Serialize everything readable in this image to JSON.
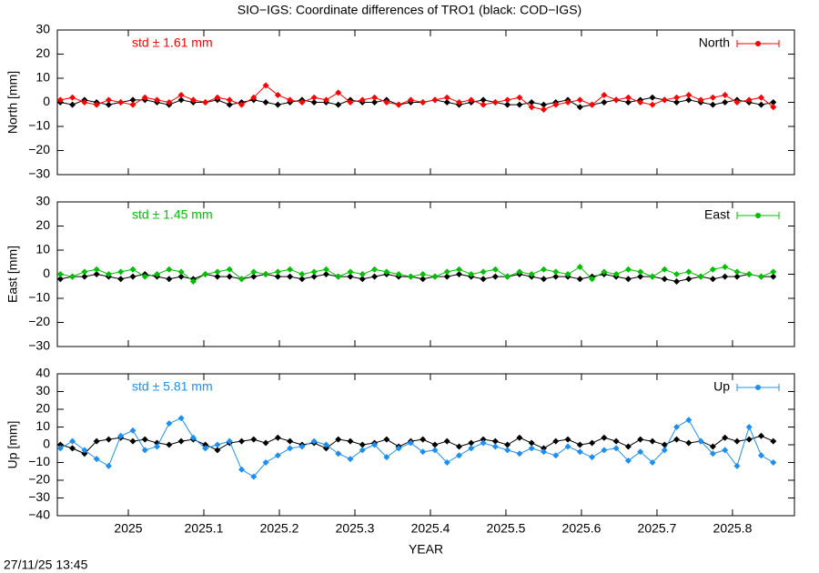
{
  "title": "SIO−IGS: Coordinate differences of TRO1 (black: COD−IGS)",
  "footer": "27/11/25 13:45",
  "chart_data": [
    {
      "type": "line",
      "ylabel": "North [mm]",
      "annotation": "std ± 1.61 mm",
      "legend": "upper right",
      "xlim": [
        2024.906,
        2025.882
      ],
      "xticks": [
        2025,
        2025.1,
        2025.2,
        2025.3,
        2025.4,
        2025.5,
        2025.6,
        2025.7,
        2025.8
      ],
      "ylim": [
        -30,
        30
      ],
      "yticks": [
        {
          "value": -30,
          "label": "−30"
        },
        {
          "value": -20,
          "label": "−20"
        },
        {
          "value": -10,
          "label": "−10"
        },
        0,
        10,
        20,
        30
      ],
      "x": [
        2024.91,
        2024.926,
        2024.942,
        2024.958,
        2024.974,
        2024.99,
        2025.006,
        2025.022,
        2025.038,
        2025.054,
        2025.07,
        2025.086,
        2025.102,
        2025.118,
        2025.134,
        2025.15,
        2025.166,
        2025.182,
        2025.198,
        2025.214,
        2025.23,
        2025.246,
        2025.262,
        2025.278,
        2025.294,
        2025.31,
        2025.326,
        2025.342,
        2025.358,
        2025.374,
        2025.39,
        2025.406,
        2025.422,
        2025.438,
        2025.454,
        2025.47,
        2025.486,
        2025.502,
        2025.518,
        2025.534,
        2025.55,
        2025.566,
        2025.582,
        2025.598,
        2025.614,
        2025.63,
        2025.646,
        2025.662,
        2025.678,
        2025.694,
        2025.71,
        2025.726,
        2025.742,
        2025.758,
        2025.774,
        2025.79,
        2025.806,
        2025.822,
        2025.838,
        2025.854
      ],
      "series": [
        {
          "color": "#000000",
          "values": [
            0,
            -1,
            1,
            0,
            -1,
            0,
            1,
            1,
            0,
            -1,
            1,
            0,
            0,
            1,
            -1,
            0,
            1,
            0,
            -1,
            0,
            1,
            0,
            0,
            -1,
            1,
            0,
            0,
            1,
            -1,
            0,
            0,
            1,
            0,
            -1,
            0,
            1,
            0,
            -1,
            -1,
            0,
            -1,
            0,
            1,
            -2,
            -1,
            0,
            1,
            0,
            1,
            2,
            1,
            0,
            1,
            0,
            -1,
            0,
            1,
            0,
            -1,
            0
          ]
        },
        {
          "name": "North",
          "color": "#ff0000",
          "values": [
            1,
            2,
            0,
            -1,
            1,
            0,
            -1,
            2,
            1,
            0,
            3,
            1,
            0,
            2,
            1,
            -1,
            2,
            7,
            3,
            1,
            0,
            2,
            1,
            4,
            0,
            1,
            2,
            0,
            -1,
            1,
            0,
            1,
            2,
            0,
            1,
            -1,
            0,
            1,
            2,
            -2,
            -3,
            -1,
            0,
            1,
            -1,
            3,
            1,
            2,
            0,
            -1,
            1,
            2,
            3,
            1,
            2,
            3,
            0,
            1,
            2,
            -2
          ]
        }
      ]
    },
    {
      "type": "line",
      "ylabel": "East [mm]",
      "annotation": "std ± 1.45 mm",
      "legend": "upper right",
      "xlim": [
        2024.906,
        2025.882
      ],
      "xticks": [
        2025,
        2025.1,
        2025.2,
        2025.3,
        2025.4,
        2025.5,
        2025.6,
        2025.7,
        2025.8
      ],
      "ylim": [
        -30,
        30
      ],
      "yticks": [
        {
          "value": -30,
          "label": "−30"
        },
        {
          "value": -20,
          "label": "−20"
        },
        {
          "value": -10,
          "label": "−10"
        },
        0,
        10,
        20,
        30
      ],
      "x": [
        2024.91,
        2024.926,
        2024.942,
        2024.958,
        2024.974,
        2024.99,
        2025.006,
        2025.022,
        2025.038,
        2025.054,
        2025.07,
        2025.086,
        2025.102,
        2025.118,
        2025.134,
        2025.15,
        2025.166,
        2025.182,
        2025.198,
        2025.214,
        2025.23,
        2025.246,
        2025.262,
        2025.278,
        2025.294,
        2025.31,
        2025.326,
        2025.342,
        2025.358,
        2025.374,
        2025.39,
        2025.406,
        2025.422,
        2025.438,
        2025.454,
        2025.47,
        2025.486,
        2025.502,
        2025.518,
        2025.534,
        2025.55,
        2025.566,
        2025.582,
        2025.598,
        2025.614,
        2025.63,
        2025.646,
        2025.662,
        2025.678,
        2025.694,
        2025.71,
        2025.726,
        2025.742,
        2025.758,
        2025.774,
        2025.79,
        2025.806,
        2025.822,
        2025.838,
        2025.854
      ],
      "series": [
        {
          "color": "#000000",
          "values": [
            -2,
            -1,
            -1,
            0,
            -1,
            -2,
            -1,
            0,
            -1,
            -2,
            -1,
            -2,
            0,
            -1,
            -1,
            -2,
            -1,
            0,
            -1,
            -1,
            -2,
            -1,
            0,
            -1,
            -1,
            -2,
            -1,
            0,
            -1,
            -1,
            -2,
            -1,
            -1,
            0,
            -1,
            -2,
            -1,
            -1,
            0,
            -1,
            -2,
            -1,
            -1,
            -2,
            -1,
            0,
            -1,
            -2,
            -1,
            -1,
            -2,
            -3,
            -2,
            -1,
            -2,
            -1,
            -1,
            0,
            -1,
            -1
          ]
        },
        {
          "name": "East",
          "color": "#00c000",
          "values": [
            0,
            -1,
            1,
            2,
            0,
            1,
            2,
            -1,
            0,
            2,
            1,
            -3,
            0,
            1,
            2,
            -2,
            1,
            0,
            1,
            2,
            0,
            1,
            2,
            -1,
            1,
            0,
            2,
            1,
            0,
            -1,
            0,
            -1,
            1,
            2,
            0,
            1,
            2,
            -1,
            1,
            0,
            2,
            1,
            0,
            3,
            -2,
            1,
            0,
            2,
            1,
            -1,
            2,
            0,
            1,
            -1,
            2,
            3,
            1,
            0,
            -1,
            1
          ]
        }
      ]
    },
    {
      "type": "line",
      "ylabel": "Up [mm]",
      "annotation": "std ± 5.81 mm",
      "legend": "upper right",
      "xlabel": "YEAR",
      "xlim": [
        2024.906,
        2025.882
      ],
      "xticks": [
        2025,
        2025.1,
        2025.2,
        2025.3,
        2025.4,
        2025.5,
        2025.6,
        2025.7,
        2025.8
      ],
      "ylim": [
        -40,
        40
      ],
      "yticks": [
        {
          "value": -40,
          "label": "−40"
        },
        {
          "value": -30,
          "label": "−30"
        },
        {
          "value": -20,
          "label": "−20"
        },
        {
          "value": -10,
          "label": "−10"
        },
        0,
        10,
        20,
        30,
        40
      ],
      "x": [
        2024.91,
        2024.926,
        2024.942,
        2024.958,
        2024.974,
        2024.99,
        2025.006,
        2025.022,
        2025.038,
        2025.054,
        2025.07,
        2025.086,
        2025.102,
        2025.118,
        2025.134,
        2025.15,
        2025.166,
        2025.182,
        2025.198,
        2025.214,
        2025.23,
        2025.246,
        2025.262,
        2025.278,
        2025.294,
        2025.31,
        2025.326,
        2025.342,
        2025.358,
        2025.374,
        2025.39,
        2025.406,
        2025.422,
        2025.438,
        2025.454,
        2025.47,
        2025.486,
        2025.502,
        2025.518,
        2025.534,
        2025.55,
        2025.566,
        2025.582,
        2025.598,
        2025.614,
        2025.63,
        2025.646,
        2025.662,
        2025.678,
        2025.694,
        2025.71,
        2025.726,
        2025.742,
        2025.758,
        2025.774,
        2025.79,
        2025.806,
        2025.822,
        2025.838,
        2025.854
      ],
      "series": [
        {
          "color": "#000000",
          "values": [
            0,
            -2,
            -5,
            2,
            3,
            4,
            2,
            3,
            1,
            0,
            2,
            3,
            0,
            -3,
            1,
            2,
            3,
            1,
            4,
            2,
            0,
            1,
            -2,
            3,
            2,
            0,
            1,
            3,
            -1,
            2,
            3,
            0,
            2,
            -1,
            1,
            3,
            2,
            0,
            4,
            1,
            -2,
            2,
            3,
            0,
            1,
            4,
            2,
            -1,
            3,
            2,
            0,
            3,
            1,
            2,
            -1,
            4,
            2,
            3,
            5,
            2
          ]
        },
        {
          "name": "Up",
          "color": "#1e8ff0",
          "values": [
            -2,
            2,
            -3,
            -8,
            -12,
            5,
            8,
            -3,
            -1,
            12,
            15,
            4,
            -2,
            0,
            2,
            -14,
            -18,
            -10,
            -6,
            -2,
            -1,
            2,
            0,
            -5,
            -8,
            -3,
            0,
            -7,
            -2,
            1,
            -4,
            -3,
            -10,
            -6,
            -2,
            1,
            -1,
            -3,
            -5,
            -2,
            -4,
            -6,
            -1,
            -4,
            -7,
            -3,
            -2,
            -9,
            -4,
            -10,
            -3,
            10,
            14,
            2,
            -5,
            -3,
            -12,
            10,
            -6,
            -10
          ]
        }
      ]
    }
  ]
}
